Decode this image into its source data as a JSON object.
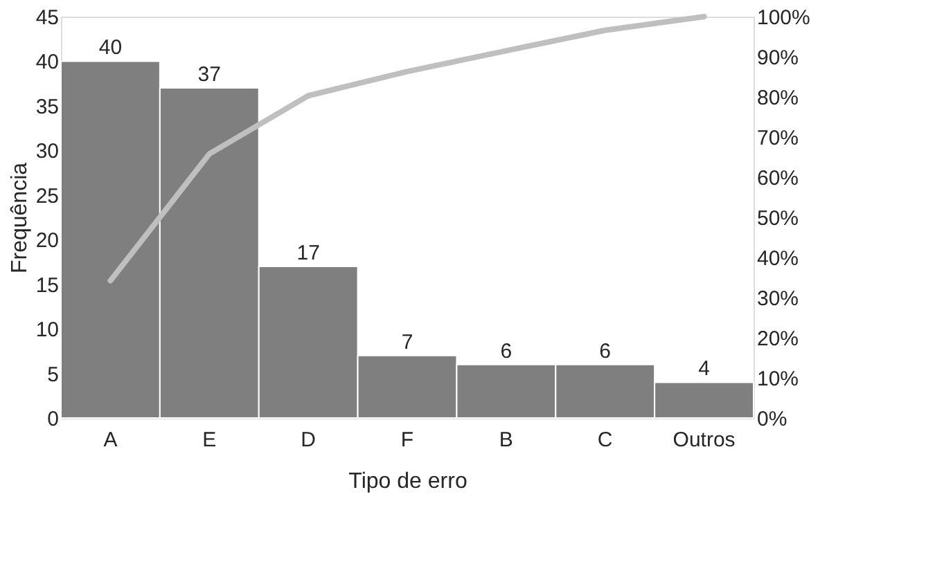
{
  "chart_data": {
    "type": "bar",
    "xlabel": "Tipo de erro",
    "ylabel": "Frequência",
    "categories": [
      "A",
      "E",
      "D",
      "F",
      "B",
      "C",
      "Outros"
    ],
    "series": [
      {
        "color": "#7f7f7f",
        "values": [
          40,
          37,
          17,
          7,
          6,
          6,
          4
        ],
        "value_labels": [
          "40",
          "37",
          "17",
          "7",
          "6",
          "6",
          "4"
        ]
      },
      {
        "type": "line",
        "axis": "y2",
        "color": "#bfbfbf",
        "values": [
          34.2,
          65.8,
          80.3,
          86.3,
          91.5,
          96.6,
          100
        ]
      }
    ],
    "ylim": [
      0,
      45
    ],
    "yticks": [
      0,
      5,
      10,
      15,
      20,
      25,
      30,
      35,
      40,
      45
    ],
    "y2lim": [
      0,
      100
    ],
    "y2ticks": [
      {
        "value": 0,
        "label": "0%"
      },
      {
        "value": 10,
        "label": "10%"
      },
      {
        "value": 20,
        "label": "20%"
      },
      {
        "value": 30,
        "label": "30%"
      },
      {
        "value": 40,
        "label": "40%"
      },
      {
        "value": 50,
        "label": "50%"
      },
      {
        "value": 60,
        "label": "60%"
      },
      {
        "value": 70,
        "label": "70%"
      },
      {
        "value": 80,
        "label": "80%"
      },
      {
        "value": 90,
        "label": "90%"
      },
      {
        "value": 100,
        "label": "100%"
      }
    ],
    "grid": false,
    "marker": "none",
    "line_style": "solid"
  }
}
